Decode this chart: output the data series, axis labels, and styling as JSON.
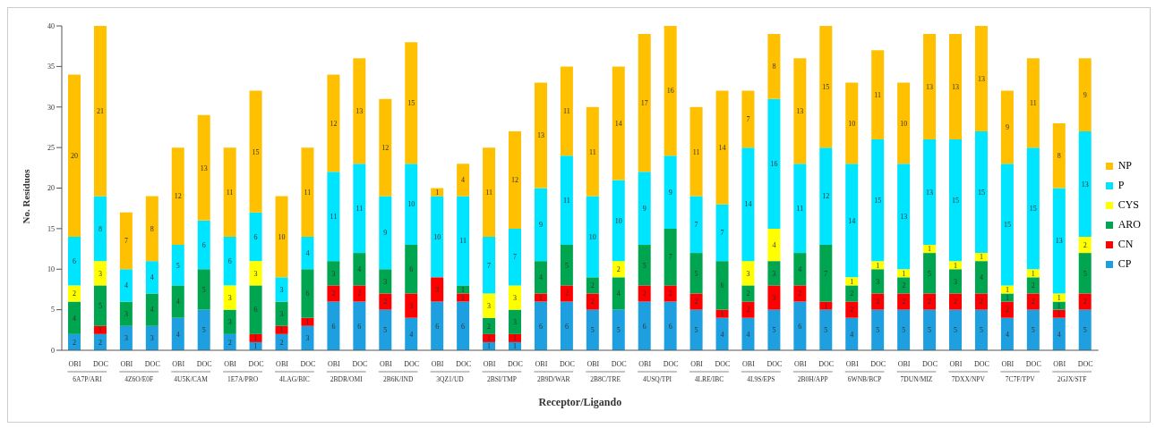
{
  "chart_data": {
    "type": "bar",
    "stacked": true,
    "xlabel": "Receptor/Ligando",
    "ylabel": "No. Resíduos",
    "categories": [
      "OBI",
      "DOC",
      "OBI",
      "DOC",
      "OBI",
      "DOC",
      "OBI",
      "DOC",
      "OBI",
      "DOC",
      "OBI",
      "DOC",
      "OBI",
      "DOC",
      "OBI",
      "DOC",
      "OBI",
      "DOC",
      "OBI",
      "DOC",
      "OBI",
      "DOC",
      "OBI",
      "DOC",
      "OBI",
      "DOC",
      "OBI",
      "DOC",
      "OBI",
      "DOC",
      "OBI",
      "DOC",
      "OBI",
      "DOC",
      "OBI",
      "DOC",
      "OBI",
      "DOC",
      "OBI",
      "DOC"
    ],
    "annotations": [
      "6A7P/ARI",
      "4Z6O/E0F",
      "4U5K/CAM",
      "1E7A/PRO",
      "4LAG/BIC",
      "2BDR/OMI",
      "2B6K/IND",
      "3QZ1/UD",
      "2BSI/TMP",
      "2B9D/WAR",
      "2B8C/TRE",
      "4USQ/TPI",
      "4LRE/IBC",
      "4L9S/EPS",
      "2B0H/APP",
      "6WNB/BCP",
      "7DUN/MIZ",
      "7DXX/NPV",
      "7C7F/TPV",
      "2GJX/STF"
    ],
    "series": [
      {
        "name": "CP",
        "color": "#1e9fe0",
        "values": [
          2,
          2,
          3,
          3,
          4,
          5,
          2,
          1,
          2,
          3,
          6,
          6,
          5,
          4,
          6,
          6,
          1,
          1,
          6,
          6,
          5,
          5,
          6,
          6,
          5,
          4,
          4,
          5,
          6,
          5,
          4,
          5,
          5,
          5,
          5,
          5,
          4,
          5,
          4,
          5
        ]
      },
      {
        "name": "CN",
        "color": "#ff0000",
        "values": [
          null,
          1,
          null,
          null,
          null,
          null,
          null,
          1,
          1,
          1,
          2,
          2,
          2,
          3,
          3,
          1,
          1,
          1,
          1,
          2,
          2,
          null,
          2,
          2,
          2,
          1,
          2,
          3,
          2,
          1,
          2,
          2,
          2,
          2,
          2,
          2,
          2,
          2,
          1,
          2
        ]
      },
      {
        "name": "ARO",
        "color": "#00a550",
        "values": [
          4,
          5,
          3,
          4,
          4,
          5,
          3,
          6,
          3,
          6,
          3,
          4,
          3,
          6,
          null,
          1,
          2,
          3,
          4,
          5,
          2,
          4,
          5,
          7,
          5,
          6,
          2,
          3,
          4,
          7,
          2,
          3,
          2,
          5,
          3,
          4,
          1,
          2,
          1,
          5
        ]
      },
      {
        "name": "CYS",
        "color": "#ffff00",
        "values": [
          2,
          3,
          null,
          null,
          null,
          null,
          3,
          3,
          null,
          null,
          null,
          null,
          null,
          null,
          null,
          null,
          3,
          3,
          null,
          null,
          null,
          2,
          null,
          null,
          null,
          null,
          3,
          4,
          null,
          null,
          1,
          1,
          1,
          1,
          1,
          1,
          1,
          1,
          1,
          2
        ]
      },
      {
        "name": "P",
        "color": "#00e5ff",
        "values": [
          6,
          8,
          4,
          4,
          5,
          6,
          6,
          6,
          3,
          4,
          11,
          11,
          9,
          10,
          10,
          11,
          7,
          7,
          9,
          11,
          10,
          10,
          9,
          9,
          7,
          7,
          14,
          16,
          11,
          12,
          14,
          15,
          13,
          13,
          15,
          15,
          15,
          15,
          13,
          13
        ]
      },
      {
        "name": "NP",
        "color": "#ffc000",
        "values": [
          20,
          21,
          7,
          8,
          12,
          13,
          11,
          15,
          10,
          11,
          12,
          13,
          12,
          15,
          1,
          4,
          11,
          12,
          13,
          11,
          11,
          14,
          17,
          16,
          11,
          14,
          7,
          8,
          13,
          15,
          10,
          11,
          10,
          13,
          13,
          13,
          9,
          11,
          8,
          9
        ]
      }
    ],
    "ylim": [
      0,
      40
    ],
    "yticks": [
      0,
      5,
      10,
      15,
      20,
      25,
      30,
      35,
      40
    ],
    "data_labels": true,
    "legend": "right"
  }
}
